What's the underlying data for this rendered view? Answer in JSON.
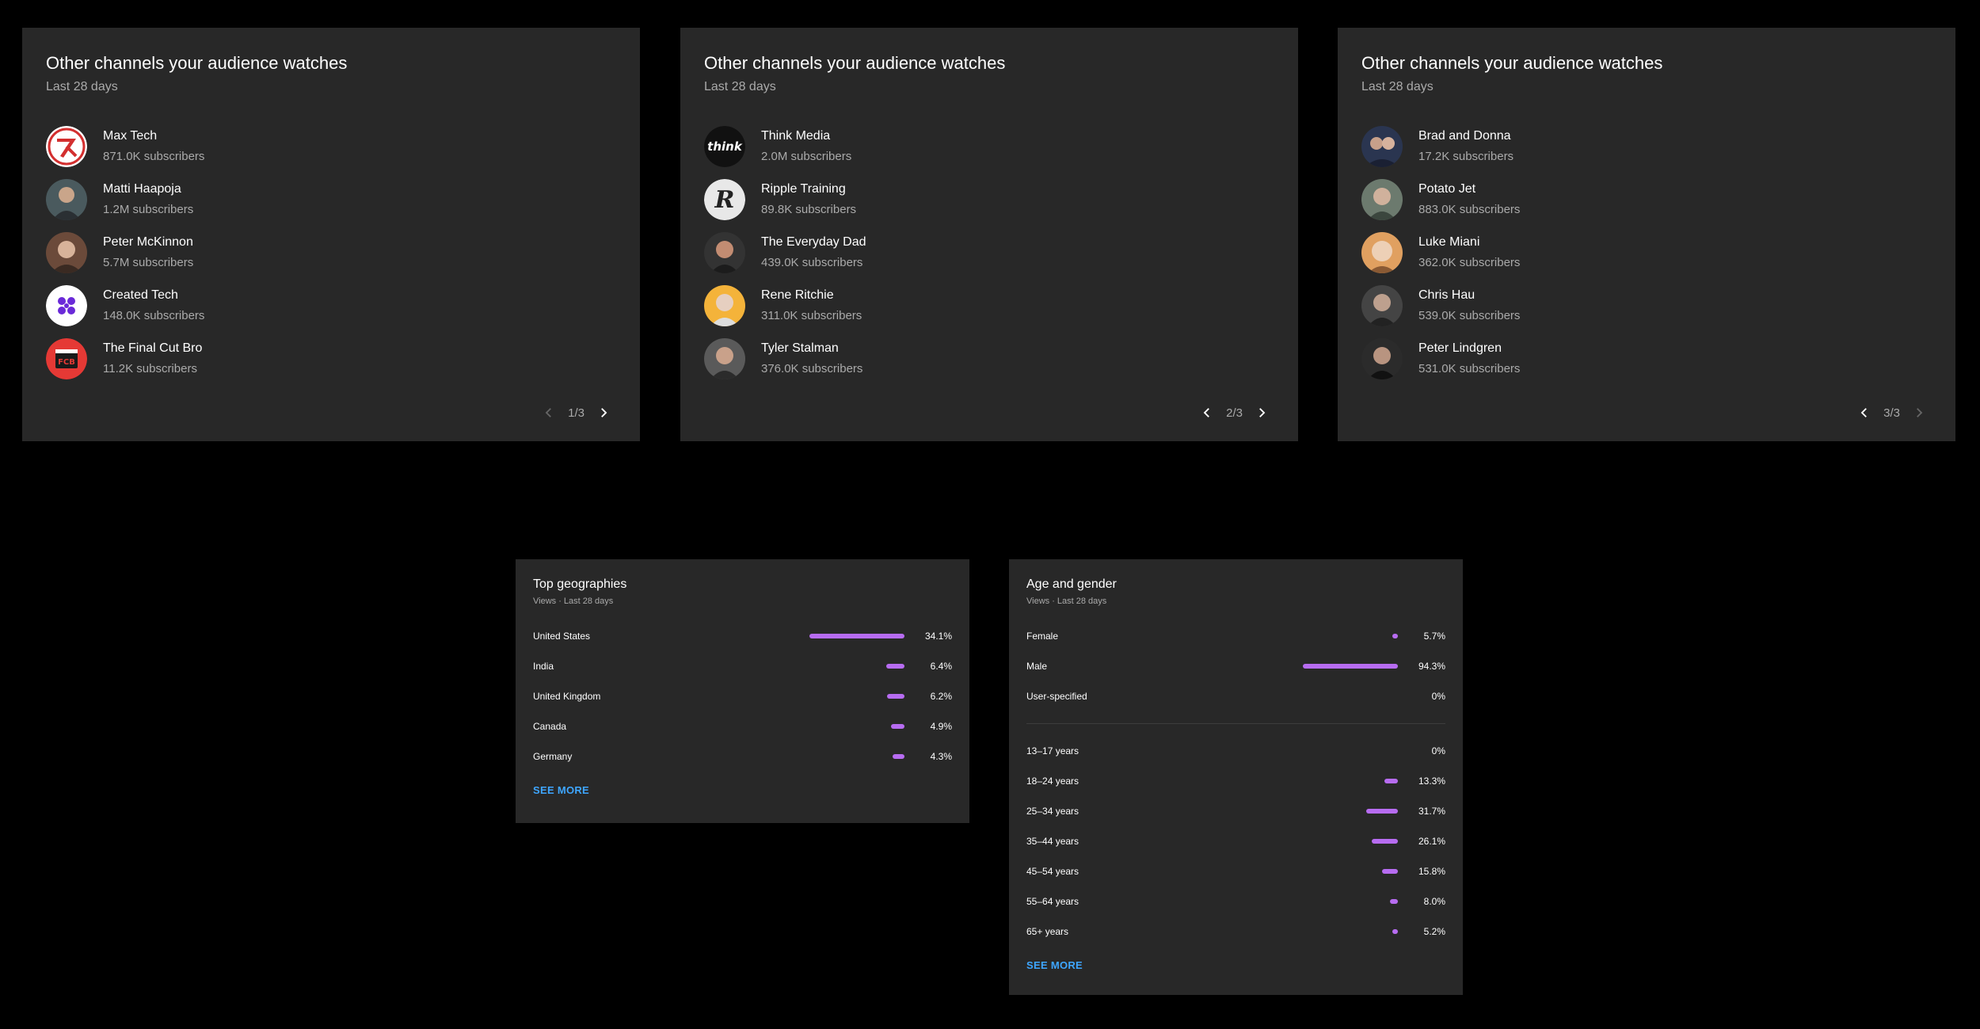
{
  "channel_cards": [
    {
      "title": "Other channels your audience watches",
      "subtitle": "Last 28 days",
      "page": "1/3",
      "channels": [
        {
          "name": "Max Tech",
          "subscribers": "871.0K subscribers",
          "avatar": "maxtech-logo"
        },
        {
          "name": "Matti Haapoja",
          "subscribers": "1.2M subscribers",
          "avatar": "person-photo"
        },
        {
          "name": "Peter McKinnon",
          "subscribers": "5.7M subscribers",
          "avatar": "person-photo"
        },
        {
          "name": "Created Tech",
          "subscribers": "148.0K subscribers",
          "avatar": "createdtech-logo"
        },
        {
          "name": "The Final Cut Bro",
          "subscribers": "11.2K subscribers",
          "avatar": "fcb-logo"
        }
      ]
    },
    {
      "title": "Other channels your audience watches",
      "subtitle": "Last 28 days",
      "page": "2/3",
      "channels": [
        {
          "name": "Think Media",
          "subscribers": "2.0M subscribers",
          "avatar": "think-logo"
        },
        {
          "name": "Ripple Training",
          "subscribers": "89.8K subscribers",
          "avatar": "ripple-logo"
        },
        {
          "name": "The Everyday Dad",
          "subscribers": "439.0K subscribers",
          "avatar": "person-photo"
        },
        {
          "name": "Rene Ritchie",
          "subscribers": "311.0K subscribers",
          "avatar": "person-photo"
        },
        {
          "name": "Tyler Stalman",
          "subscribers": "376.0K subscribers",
          "avatar": "person-photo"
        }
      ]
    },
    {
      "title": "Other channels your audience watches",
      "subtitle": "Last 28 days",
      "page": "3/3",
      "channels": [
        {
          "name": "Brad and Donna",
          "subscribers": "17.2K subscribers",
          "avatar": "person-photo"
        },
        {
          "name": "Potato Jet",
          "subscribers": "883.0K subscribers",
          "avatar": "person-photo"
        },
        {
          "name": "Luke Miani",
          "subscribers": "362.0K subscribers",
          "avatar": "person-photo"
        },
        {
          "name": "Chris Hau",
          "subscribers": "539.0K subscribers",
          "avatar": "person-photo"
        },
        {
          "name": "Peter Lindgren",
          "subscribers": "531.0K subscribers",
          "avatar": "person-photo"
        }
      ]
    }
  ],
  "geographies": {
    "title": "Top geographies",
    "subtitle": "Views · Last 28 days",
    "rows": [
      {
        "label": "United States",
        "value": "34.1%",
        "pct": 34.1
      },
      {
        "label": "India",
        "value": "6.4%",
        "pct": 6.4
      },
      {
        "label": "United Kingdom",
        "value": "6.2%",
        "pct": 6.2
      },
      {
        "label": "Canada",
        "value": "4.9%",
        "pct": 4.9
      },
      {
        "label": "Germany",
        "value": "4.3%",
        "pct": 4.3
      }
    ],
    "see_more": "SEE MORE"
  },
  "age_gender": {
    "title": "Age and gender",
    "subtitle": "Views · Last 28 days",
    "gender_rows": [
      {
        "label": "Female",
        "value": "5.7%",
        "pct": 5.7
      },
      {
        "label": "Male",
        "value": "94.3%",
        "pct": 94.3
      },
      {
        "label": "User-specified",
        "value": "0%",
        "pct": 0
      }
    ],
    "age_rows": [
      {
        "label": "13–17 years",
        "value": "0%",
        "pct": 0
      },
      {
        "label": "18–24 years",
        "value": "13.3%",
        "pct": 13.3
      },
      {
        "label": "25–34 years",
        "value": "31.7%",
        "pct": 31.7
      },
      {
        "label": "35–44 years",
        "value": "26.1%",
        "pct": 26.1
      },
      {
        "label": "45–54 years",
        "value": "15.8%",
        "pct": 15.8
      },
      {
        "label": "55–64 years",
        "value": "8.0%",
        "pct": 8.0
      },
      {
        "label": "65+ years",
        "value": "5.2%",
        "pct": 5.2
      }
    ],
    "see_more": "SEE MORE"
  },
  "colors": {
    "bar": "#b76cf1",
    "link": "#3ea6ff",
    "card": "#282828"
  }
}
